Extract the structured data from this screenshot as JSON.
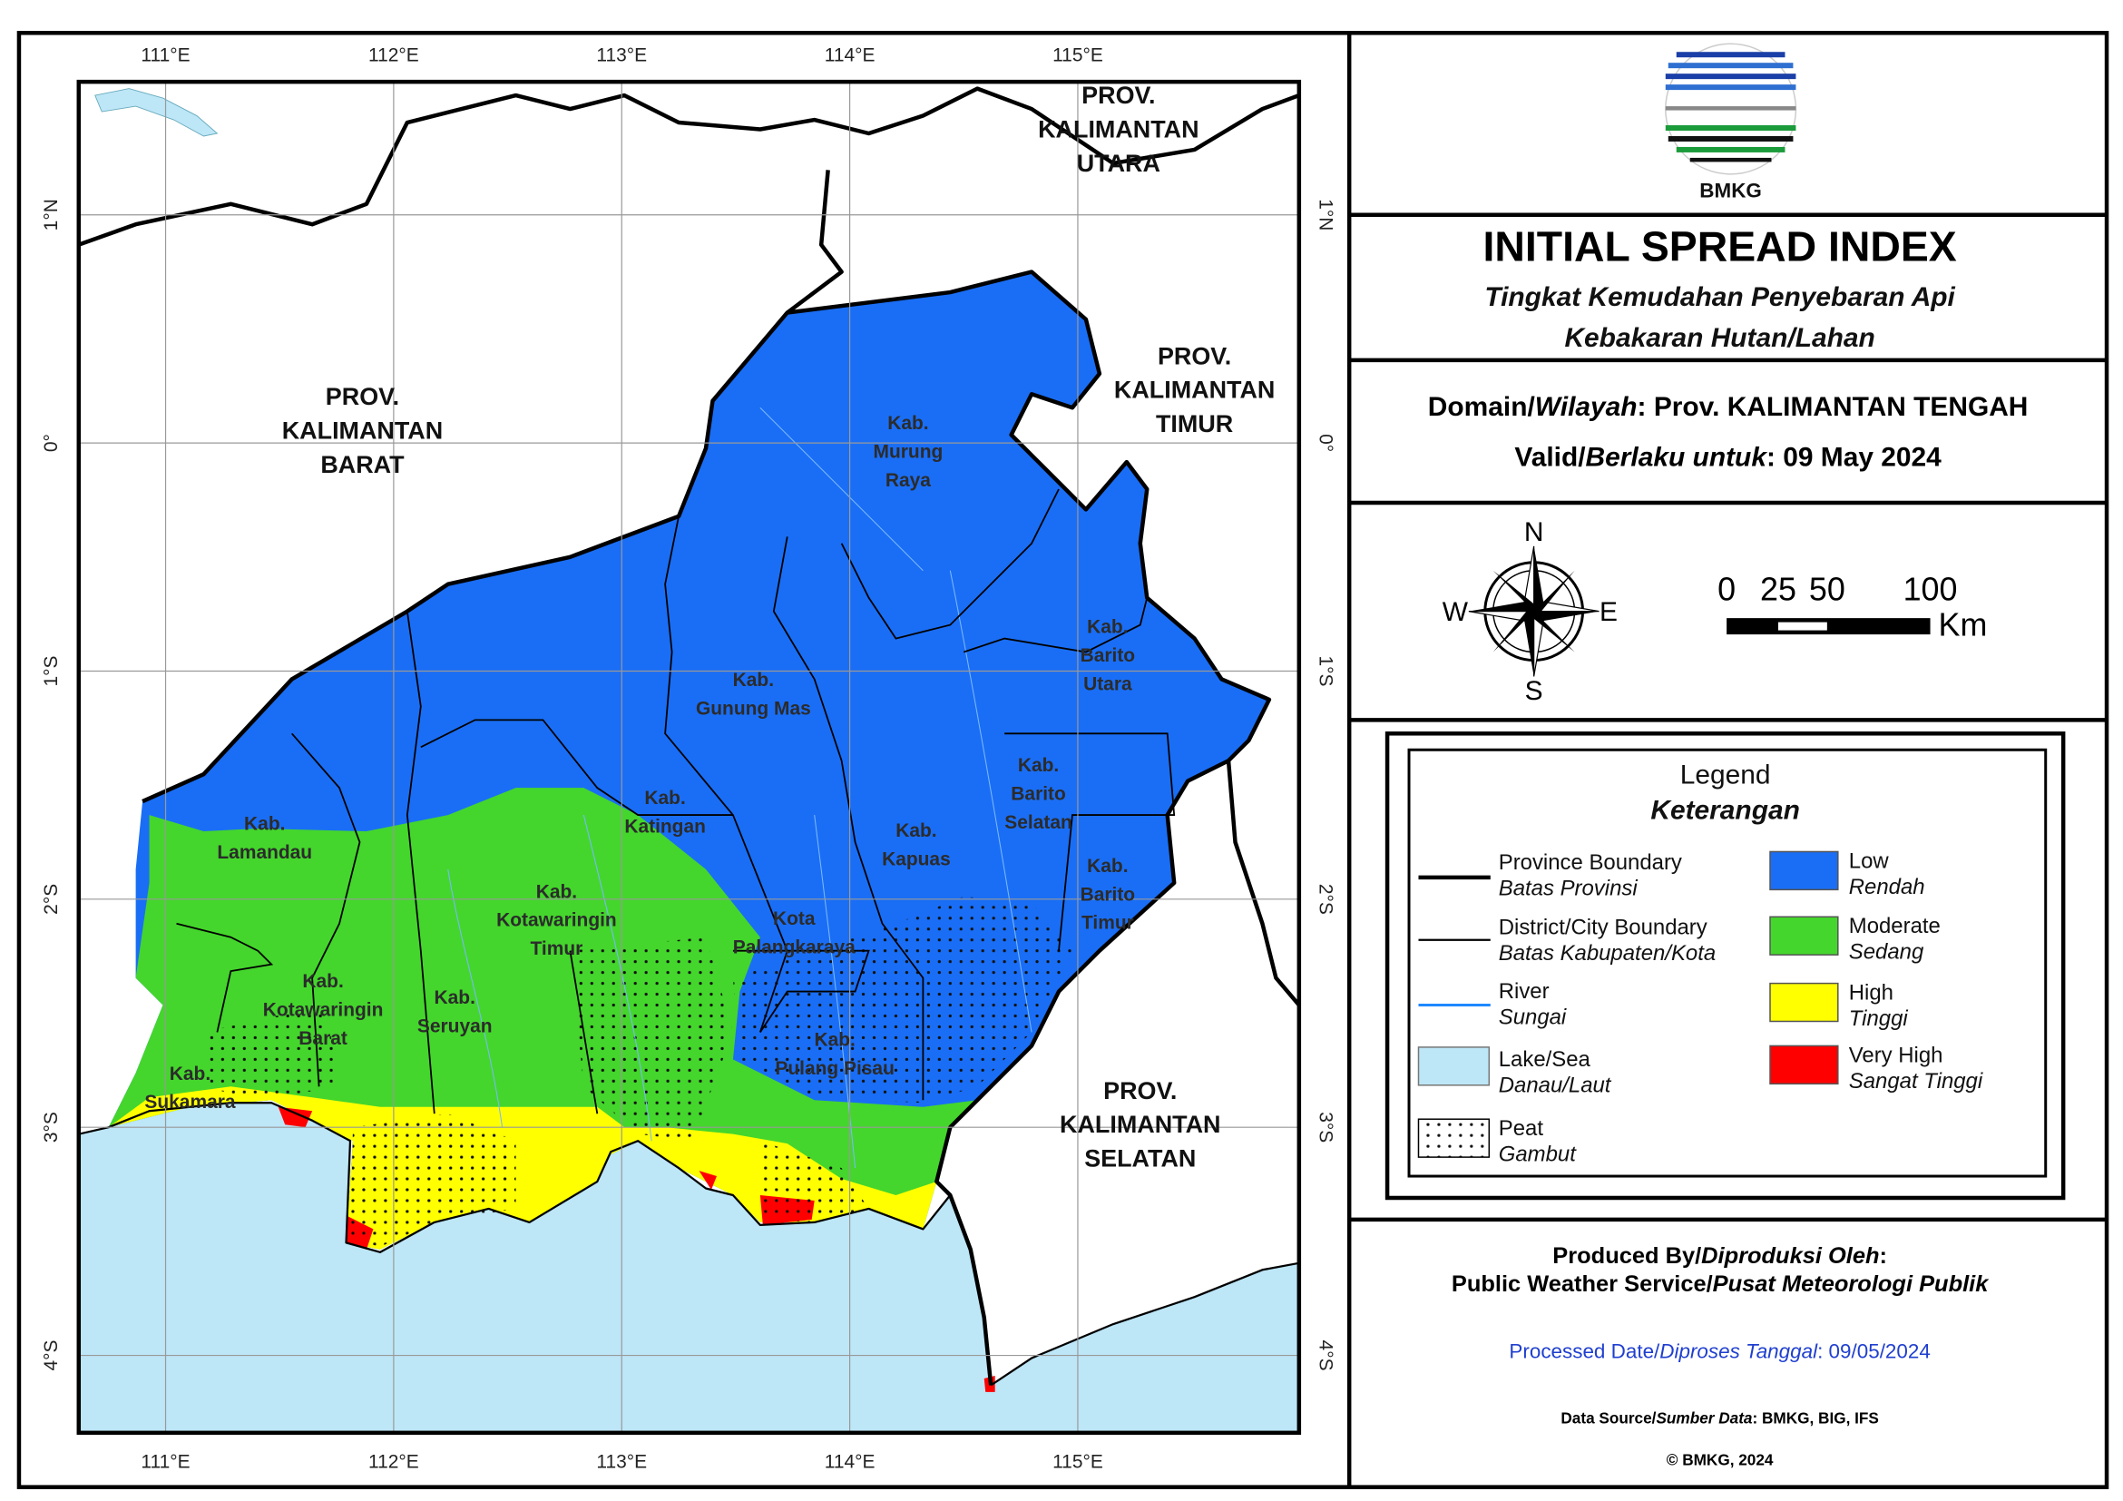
{
  "logo": {
    "text": "BMKG"
  },
  "header": {
    "title": "INITIAL SPREAD INDEX",
    "subtitle": [
      "Tingkat Kemudahan Penyebaran Api",
      "Kebakaran Hutan/Lahan"
    ]
  },
  "domain": {
    "label": "Domain/",
    "label_local": "Wilayah",
    "value": ": Prov. KALIMANTAN TENGAH"
  },
  "valid": {
    "label": "Valid/",
    "label_local": "Berlaku untuk",
    "value": ": 09 May 2024"
  },
  "compass": {
    "n": "N",
    "s": "S",
    "w": "W",
    "e": "E"
  },
  "scale_bar": {
    "labels": [
      "0",
      "25",
      "50",
      "100"
    ],
    "unit": "Km"
  },
  "legend": {
    "title": "Legend",
    "subtitle": "Keterangan",
    "lines": [
      {
        "label": "Province Boundary",
        "label_local": "Batas Provinsi"
      },
      {
        "label": "District/City Boundary",
        "label_local": "Batas Kabupaten/Kota"
      },
      {
        "label": "River",
        "label_local": "Sungai"
      },
      {
        "label": "Lake/Sea",
        "label_local": "Danau/Laut"
      },
      {
        "label": "Peat",
        "label_local": "Gambut"
      }
    ],
    "classes": [
      {
        "label": "Low",
        "label_local": "Rendah",
        "color": "#1a6ef5"
      },
      {
        "label": "Moderate",
        "label_local": "Sedang",
        "color": "#44d62c"
      },
      {
        "label": "High",
        "label_local": "Tinggi",
        "color": "#ffff00"
      },
      {
        "label": "Very High",
        "label_local": "Sangat Tinggi",
        "color": "#ff0000"
      }
    ]
  },
  "credits": {
    "produced_label": "Produced By/",
    "produced_label_local": "Diproduksi Oleh",
    "produced_colon": ":",
    "producer": "Public Weather Service/",
    "producer_local": "Pusat Meteorologi Publik",
    "processed_label": "Processed Date/",
    "processed_label_local": "Diproses Tanggal",
    "processed_value": ": 09/05/2024",
    "source_label": "Data Source/",
    "source_label_local": "Sumber Data",
    "source_value": ": BMKG, BIG, IFS",
    "copyright": "© BMKG, 2024"
  },
  "map": {
    "longitudes": [
      "111°E",
      "112°E",
      "113°E",
      "114°E",
      "115°E"
    ],
    "latitudes": [
      "1°N",
      "0°",
      "1°S",
      "2°S",
      "3°S",
      "4°S"
    ],
    "provinces": [
      {
        "lines": [
          "PROV.",
          "KALIMANTAN",
          "BARAT"
        ]
      },
      {
        "lines": [
          "PROV.",
          "KALIMANTAN",
          "UTARA"
        ]
      },
      {
        "lines": [
          "PROV.",
          "KALIMANTAN",
          "TIMUR"
        ]
      },
      {
        "lines": [
          "PROV.",
          "KALIMANTAN",
          "SELATAN"
        ]
      }
    ],
    "districts": [
      {
        "lines": [
          "Kab.",
          "Murung",
          "Raya"
        ]
      },
      {
        "lines": [
          "Kab.",
          "Gunung Mas"
        ]
      },
      {
        "lines": [
          "Kab.",
          "Barito",
          "Utara"
        ]
      },
      {
        "lines": [
          "Kab.",
          "Katingan"
        ]
      },
      {
        "lines": [
          "Kab.",
          "Lamandau"
        ]
      },
      {
        "lines": [
          "Kab.",
          "Kapuas"
        ]
      },
      {
        "lines": [
          "Kab.",
          "Barito",
          "Selatan"
        ]
      },
      {
        "lines": [
          "Kab.",
          "Barito",
          "Timur"
        ]
      },
      {
        "lines": [
          "Kab.",
          "Kotawaringin",
          "Timur"
        ]
      },
      {
        "lines": [
          "Kota",
          "Palangkaraya"
        ]
      },
      {
        "lines": [
          "Kab.",
          "Kotawaringin",
          "Barat"
        ]
      },
      {
        "lines": [
          "Kab.",
          "Seruyan"
        ]
      },
      {
        "lines": [
          "Kab.",
          "Pulang Pisau"
        ]
      },
      {
        "lines": [
          "Kab.",
          "Sukamara"
        ]
      }
    ]
  }
}
